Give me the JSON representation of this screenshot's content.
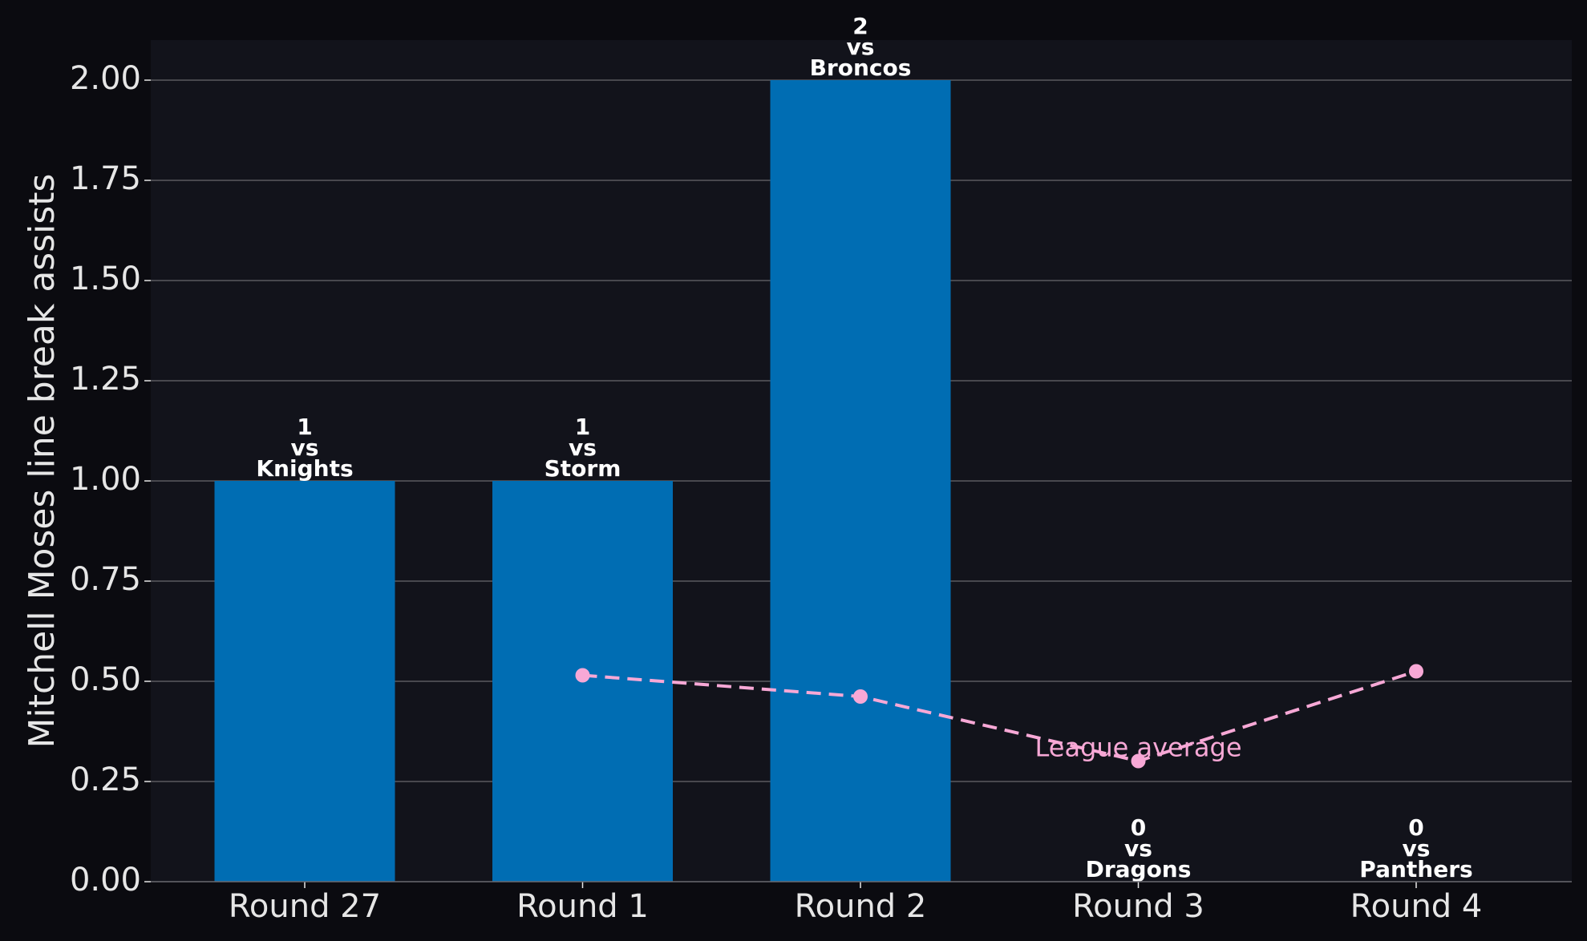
{
  "chart_data": {
    "type": "bar",
    "title": "",
    "xlabel": "",
    "ylabel": "Mitchell Moses line break assists",
    "categories": [
      "Round 27",
      "Round 1",
      "Round 2",
      "Round 3",
      "Round 4"
    ],
    "series": [
      {
        "values": [
          1,
          1,
          2,
          0,
          0
        ]
      }
    ],
    "bar_labels": [
      {
        "value": "1",
        "vs": "vs",
        "opponent": "Knights"
      },
      {
        "value": "1",
        "vs": "vs",
        "opponent": "Storm"
      },
      {
        "value": "2",
        "vs": "vs",
        "opponent": "Broncos"
      },
      {
        "value": "0",
        "vs": "vs",
        "opponent": "Dragons"
      },
      {
        "value": "0",
        "vs": "vs",
        "opponent": "Panthers"
      }
    ],
    "league_average": {
      "label": "League average",
      "categories": [
        "Round 1",
        "Round 2",
        "Round 3",
        "Round 4"
      ],
      "values": [
        0.515,
        0.462,
        0.301,
        0.525
      ]
    },
    "ylim": [
      0,
      2.1
    ],
    "yticks": [
      "0.00",
      "0.25",
      "0.50",
      "0.75",
      "1.00",
      "1.25",
      "1.50",
      "1.75",
      "2.00"
    ],
    "grid": "horizontal",
    "colors": {
      "background": "#0b0b10",
      "plot_background": "#12131b",
      "bar": "#006db3",
      "average": "#f7a8d6",
      "grid": "#5a5a5f",
      "text": "#e6e6e6"
    }
  }
}
